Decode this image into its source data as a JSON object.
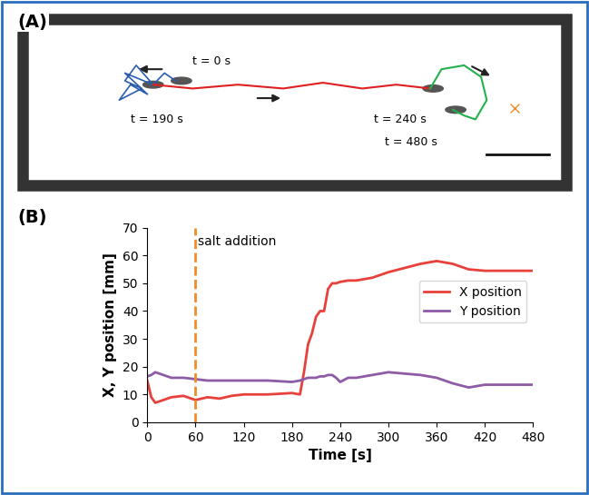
{
  "panel_a": {
    "label": "(A)",
    "time_labels": [
      "t = 0 s",
      "t = 190 s",
      "t = 240 s",
      "t = 480 s"
    ]
  },
  "chart_data": {
    "label": "(B)",
    "type": "line",
    "x_label": "Time [s]",
    "y_label": "X, Y position [mm]",
    "annotations": [
      {
        "text": "salt addition",
        "x": 60,
        "color": "#f28c28"
      }
    ],
    "x": [
      0,
      5,
      10,
      20,
      30,
      45,
      60,
      75,
      90,
      105,
      120,
      150,
      180,
      190,
      195,
      200,
      205,
      210,
      215,
      220,
      225,
      230,
      235,
      240,
      250,
      260,
      280,
      300,
      320,
      340,
      360,
      380,
      400,
      420,
      450,
      480
    ],
    "series": [
      {
        "name": "X position",
        "color": "#e8403a",
        "values": [
          15,
          9,
          7,
          8,
          9,
          9.5,
          8,
          9,
          8.5,
          9.5,
          10,
          10,
          10.5,
          10,
          18,
          28,
          32,
          38,
          40,
          40,
          48,
          50,
          50,
          50.5,
          51,
          51,
          52,
          54,
          55.5,
          57,
          58,
          57,
          55,
          54.5,
          54.5,
          54.5
        ]
      },
      {
        "name": "Y position",
        "color": "#8e5ba6",
        "values": [
          16.5,
          17,
          18,
          17,
          16,
          16,
          15.5,
          15,
          15,
          15,
          15,
          15,
          14.5,
          15,
          15.5,
          16,
          16,
          16,
          16.5,
          16.5,
          17,
          17,
          16,
          14.5,
          16,
          16,
          17,
          18,
          17.5,
          17,
          16,
          14,
          12.5,
          13.5,
          13.5,
          13.5
        ]
      }
    ],
    "xlim": [
      0,
      480
    ],
    "xticks": [
      0,
      60,
      120,
      180,
      240,
      300,
      360,
      420,
      480
    ],
    "ylim": [
      0,
      70
    ],
    "yticks": [
      0,
      10,
      20,
      30,
      40,
      50,
      60,
      70
    ],
    "legend": "center right",
    "grid": false
  }
}
